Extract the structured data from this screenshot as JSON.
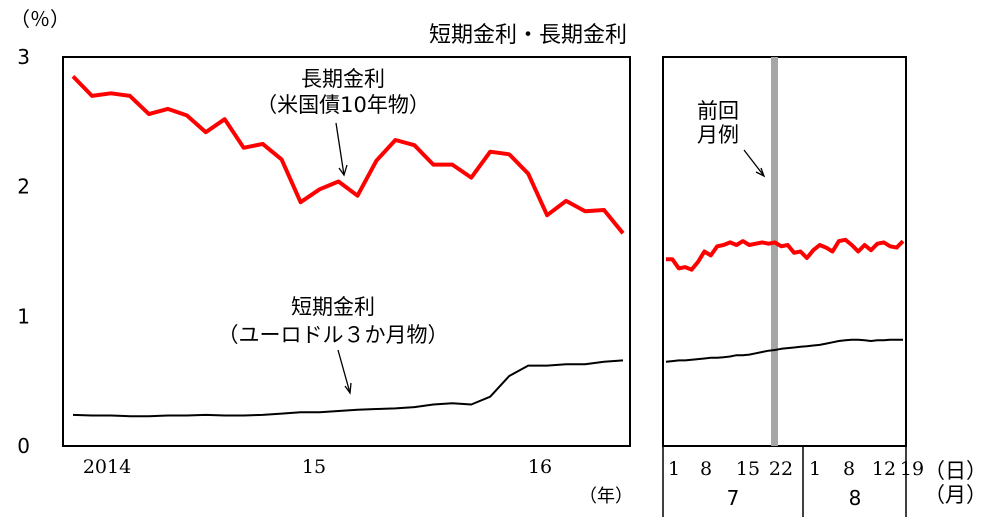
{
  "chart_data": {
    "type": "line",
    "title": "短期金利・長期金利",
    "y_unit_label": "（％）",
    "ylim": [
      0,
      3
    ],
    "y_ticks": [
      "0",
      "1",
      "2",
      "3"
    ],
    "left_panel": {
      "x_tick_labels": [
        "2014",
        "15",
        "16"
      ],
      "x_unit_label": "（年）",
      "series": [
        {
          "annotation": [
            "長期金利",
            "（米国債10年物）"
          ],
          "color": "#ff0000",
          "values": [
            2.85,
            2.7,
            2.72,
            2.7,
            2.56,
            2.6,
            2.55,
            2.42,
            2.52,
            2.3,
            2.33,
            2.21,
            1.88,
            1.98,
            2.04,
            1.93,
            2.2,
            2.36,
            2.32,
            2.17,
            2.17,
            2.07,
            2.27,
            2.25,
            2.1,
            1.78,
            1.89,
            1.81,
            1.82,
            1.64
          ]
        },
        {
          "annotation": [
            "短期金利",
            "（ユーロドル３か月物）"
          ],
          "color": "#000000",
          "values": [
            0.24,
            0.235,
            0.235,
            0.23,
            0.23,
            0.235,
            0.235,
            0.24,
            0.235,
            0.235,
            0.24,
            0.25,
            0.26,
            0.26,
            0.27,
            0.28,
            0.285,
            0.29,
            0.3,
            0.32,
            0.33,
            0.32,
            0.38,
            0.54,
            0.62,
            0.62,
            0.63,
            0.63,
            0.65,
            0.66
          ]
        }
      ]
    },
    "right_panel": {
      "annotation": [
        "前回",
        "月例"
      ],
      "day_labels": [
        "1",
        "8",
        "15",
        "22",
        "1",
        "8",
        "12",
        "19"
      ],
      "day_unit_label": "（日）",
      "month_labels": [
        "7",
        "8"
      ],
      "month_unit_label": "（月）",
      "series": [
        {
          "color": "#ff0000",
          "values": [
            1.44,
            1.44,
            1.37,
            1.38,
            1.36,
            1.42,
            1.5,
            1.47,
            1.54,
            1.55,
            1.57,
            1.55,
            1.58,
            1.55,
            1.56,
            1.57,
            1.56,
            1.57,
            1.54,
            1.55,
            1.49,
            1.5,
            1.45,
            1.51,
            1.55,
            1.53,
            1.5,
            1.58,
            1.59,
            1.55,
            1.5,
            1.55,
            1.51,
            1.56,
            1.57,
            1.54,
            1.53,
            1.58
          ]
        },
        {
          "color": "#000000",
          "values": [
            0.65,
            0.655,
            0.66,
            0.66,
            0.665,
            0.67,
            0.675,
            0.68,
            0.68,
            0.685,
            0.69,
            0.7,
            0.7,
            0.705,
            0.715,
            0.725,
            0.735,
            0.74,
            0.75,
            0.755,
            0.76,
            0.765,
            0.77,
            0.775,
            0.78,
            0.79,
            0.8,
            0.81,
            0.815,
            0.82,
            0.82,
            0.815,
            0.81,
            0.815,
            0.815,
            0.82,
            0.82,
            0.82
          ]
        }
      ]
    }
  }
}
